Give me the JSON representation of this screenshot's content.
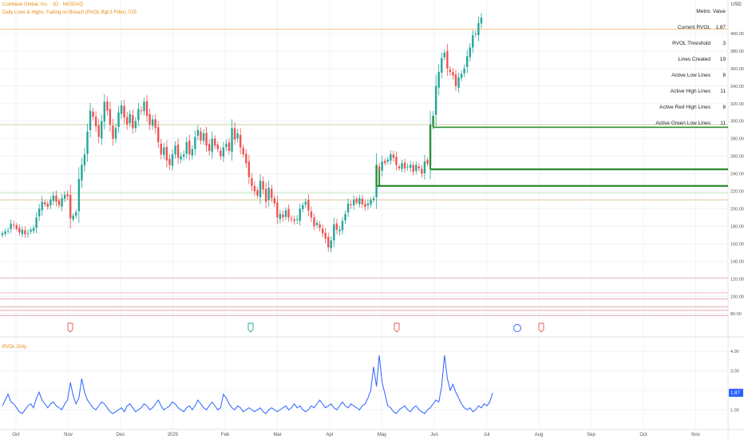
{
  "header": {
    "title_line1": "Coinbase Global, Inc. · 1D · NASDAQ",
    "title_line2": "Daily Lows & Highs, Fading on Breach (RVOL Bgt;3 Filter) 7/25",
    "currency": "USD"
  },
  "lower_pane": {
    "title": "RVOL Only",
    "current_label": "1.87"
  },
  "colors": {
    "up": "#26a69a",
    "down": "#ef5350",
    "green_line": "#2e8b2e",
    "rvol_line": "#2962ff",
    "title": "#e88c12",
    "grid": "#f0f3fa"
  },
  "stats_table": {
    "header": {
      "label": "Metric",
      "value": "Value"
    },
    "rows": [
      {
        "label": "Current RVOL",
        "value": "1.87"
      },
      {
        "label": "RVOL Threshold",
        "value": "3"
      },
      {
        "label": "Lines Created",
        "value": "19"
      },
      {
        "label": "Active Low Lines",
        "value": "8"
      },
      {
        "label": "Active High Lines",
        "value": "11"
      },
      {
        "label": "Active Red High Lines",
        "value": "8"
      },
      {
        "label": "Active Green Low Lines",
        "value": "11"
      }
    ]
  },
  "chart_data": [
    {
      "type": "candlestick",
      "title": "Coinbase Global, Inc. · 1D · NASDAQ",
      "x_ticks": [
        "Oct",
        "Nov",
        "Dec",
        "2025",
        "Feb",
        "Mar",
        "Apr",
        "May",
        "Jun",
        "Jul",
        "Aug",
        "Sep",
        "Oct",
        "Nov"
      ],
      "y_ticks": [
        80,
        100,
        120,
        140,
        160,
        180,
        200,
        220,
        240,
        260,
        280,
        300,
        320,
        340,
        360,
        380,
        400
      ],
      "ylim": [
        72,
        420
      ],
      "close_series": [
        172,
        174,
        175,
        183,
        181,
        177,
        173,
        176,
        171,
        172,
        176,
        178,
        190,
        200,
        208,
        205,
        202,
        210,
        215,
        208,
        204,
        212,
        216,
        214,
        189,
        192,
        196,
        234,
        250,
        262,
        288,
        312,
        305,
        294,
        282,
        300,
        322,
        312,
        296,
        280,
        292,
        310,
        318,
        304,
        296,
        308,
        292,
        300,
        314,
        312,
        322,
        306,
        296,
        302,
        292,
        276,
        262,
        270,
        255,
        250,
        262,
        272,
        258,
        260,
        262,
        276,
        262,
        268,
        282,
        290,
        278,
        286,
        272,
        266,
        280,
        272,
        268,
        260,
        270,
        274,
        266,
        292,
        279,
        286,
        270,
        262,
        252,
        236,
        226,
        220,
        215,
        232,
        222,
        208,
        224,
        212,
        206,
        190,
        194,
        190,
        198,
        190,
        188,
        186,
        188,
        200,
        204,
        208,
        198,
        190,
        180,
        184,
        178,
        172,
        166,
        156,
        164,
        182,
        176,
        176,
        186,
        194,
        206,
        204,
        210,
        207,
        212,
        205,
        202,
        206,
        210,
        212,
        250,
        244,
        254,
        252,
        256,
        262,
        258,
        250,
        246,
        252,
        246,
        248,
        250,
        242,
        250,
        246,
        240,
        254,
        251,
        296,
        306,
        340,
        356,
        372,
        378,
        360,
        356,
        352,
        340,
        350,
        354,
        360,
        374,
        384,
        398,
        400,
        412,
        418
      ],
      "green_low_lines": [
        {
          "from_index": 132,
          "price": 226
        },
        {
          "from_index": 133,
          "price": 226
        },
        {
          "from_index": 151,
          "price": 245
        },
        {
          "from_index": 152,
          "price": 293
        }
      ],
      "horizontal_levels": [
        405,
        296,
        218,
        210,
        121,
        104,
        97,
        88,
        84,
        78
      ]
    },
    {
      "type": "line",
      "title": "RVOL Only",
      "series": [
        {
          "name": "",
          "values": [
            1.2,
            1.5,
            1.8,
            1.4,
            1.3,
            1.1,
            0.9,
            0.8,
            1.0,
            1.2,
            1.3,
            1.1,
            1.6,
            1.9,
            1.5,
            1.3,
            1.1,
            1.3,
            1.4,
            1.2,
            1.1,
            1.0,
            1.3,
            1.5,
            2.4,
            1.7,
            1.3,
            1.6,
            2.6,
            1.9,
            1.5,
            1.3,
            1.1,
            1.0,
            1.2,
            1.4,
            1.3,
            1.1,
            0.9,
            0.8,
            0.9,
            1.0,
            1.1,
            0.9,
            1.2,
            1.3,
            1.1,
            0.9,
            1.0,
            1.1,
            1.3,
            1.2,
            1.0,
            1.1,
            1.3,
            1.5,
            1.2,
            1.0,
            1.1,
            1.2,
            1.4,
            1.3,
            1.1,
            1.0,
            0.9,
            1.1,
            1.2,
            1.0,
            1.2,
            1.5,
            1.3,
            1.1,
            1.0,
            1.2,
            1.4,
            1.2,
            1.0,
            1.1,
            1.8,
            1.6,
            1.3,
            1.1,
            1.0,
            1.2,
            1.1,
            0.9,
            1.0,
            1.1,
            1.0,
            0.9,
            1.0,
            1.1,
            0.9,
            0.8,
            1.0,
            1.1,
            1.0,
            0.9,
            1.0,
            1.1,
            1.2,
            1.0,
            1.1,
            1.3,
            1.1,
            1.2,
            1.0,
            0.9,
            1.0,
            1.2,
            1.1,
            1.3,
            1.5,
            1.3,
            1.1,
            1.2,
            1.3,
            1.1,
            1.0,
            1.2,
            1.4,
            1.2,
            1.1,
            1.3,
            1.2,
            1.1,
            1.0,
            1.2,
            1.3,
            1.6,
            2.0,
            3.2,
            2.2,
            3.8,
            2.4,
            1.8,
            1.2,
            1.1,
            0.9,
            0.8,
            1.0,
            1.1,
            1.2,
            1.0,
            0.9,
            1.1,
            1.2,
            1.0,
            0.9,
            0.8,
            1.0,
            1.1,
            1.3,
            1.5,
            1.4,
            2.2,
            3.8,
            2.6,
            2.0,
            2.3,
            1.9,
            1.6,
            1.3,
            1.1,
            1.0,
            1.1,
            0.9,
            1.0,
            1.2,
            1.1,
            1.3,
            1.2,
            1.4,
            1.87
          ]
        }
      ],
      "y_ticks": [
        1.0,
        2.0,
        3.0,
        4.0
      ],
      "ylim": [
        0.4,
        4.5
      ]
    }
  ]
}
